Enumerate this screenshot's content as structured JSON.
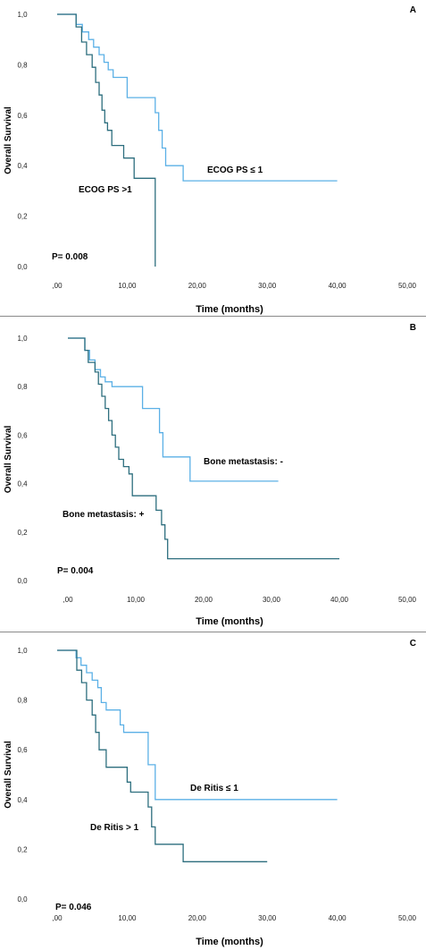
{
  "chart_data": [
    {
      "type": "line",
      "panel_label": "A",
      "ylabel": "Overall Survival",
      "xlabel": "Time (months)",
      "x_ticks": [
        ",00",
        "10,00",
        "20,00",
        "30,00",
        "40,00",
        "50,00"
      ],
      "y_ticks": [
        "0,0",
        "0,2",
        "0,4",
        "0,6",
        "0,8",
        "1,0"
      ],
      "xlim": [
        0,
        50
      ],
      "ylim": [
        0,
        1
      ],
      "p_value": "P= 0.008",
      "series": [
        {
          "name": "ECOG PS ≤ 1",
          "color": "#5bb0e6",
          "steps": [
            [
              0,
              1.0
            ],
            [
              2,
              1.0
            ],
            [
              2.7,
              0.96
            ],
            [
              3.6,
              0.93
            ],
            [
              4.5,
              0.9
            ],
            [
              5.2,
              0.87
            ],
            [
              6,
              0.84
            ],
            [
              6.7,
              0.81
            ],
            [
              7.3,
              0.78
            ],
            [
              8,
              0.75
            ],
            [
              10,
              0.75
            ],
            [
              10,
              0.67
            ],
            [
              14,
              0.67
            ],
            [
              14,
              0.61
            ],
            [
              14.5,
              0.54
            ],
            [
              15,
              0.47
            ],
            [
              15.5,
              0.4
            ],
            [
              18,
              0.4
            ],
            [
              18,
              0.34
            ],
            [
              40,
              0.34
            ]
          ],
          "label": "ECOG PS ≤ 1"
        },
        {
          "name": "ECOG PS >1",
          "color": "#2d6e7e",
          "steps": [
            [
              0,
              1.0
            ],
            [
              2,
              1.0
            ],
            [
              2.7,
              0.95
            ],
            [
              3.5,
              0.89
            ],
            [
              4.2,
              0.84
            ],
            [
              5,
              0.79
            ],
            [
              5.5,
              0.73
            ],
            [
              6,
              0.68
            ],
            [
              6.4,
              0.62
            ],
            [
              6.8,
              0.57
            ],
            [
              7.2,
              0.54
            ],
            [
              7.8,
              0.48
            ],
            [
              9.5,
              0.48
            ],
            [
              9.5,
              0.43
            ],
            [
              11,
              0.43
            ],
            [
              11,
              0.35
            ],
            [
              14,
              0.35
            ],
            [
              14,
              0.0
            ]
          ],
          "label": "ECOG PS >1"
        }
      ]
    },
    {
      "type": "line",
      "panel_label": "B",
      "ylabel": "Overall Survival",
      "xlabel": "Time (months)",
      "x_ticks": [
        ",00",
        "10,00",
        "20,00",
        "30,00",
        "40,00",
        "50,00"
      ],
      "y_ticks": [
        "0,0",
        "0,2",
        "0,4",
        "0,6",
        "0,8",
        "1,0"
      ],
      "xlim": [
        0,
        50
      ],
      "ylim": [
        0,
        1
      ],
      "p_value": "P= 0.004",
      "series": [
        {
          "name": "Bone metastasis: -",
          "color": "#5bb0e6",
          "steps": [
            [
              0,
              1.0
            ],
            [
              2,
              1.0
            ],
            [
              2.5,
              0.95
            ],
            [
              3.2,
              0.91
            ],
            [
              4,
              0.87
            ],
            [
              4.8,
              0.84
            ],
            [
              5.5,
              0.82
            ],
            [
              6.5,
              0.8
            ],
            [
              11,
              0.8
            ],
            [
              11,
              0.71
            ],
            [
              13.5,
              0.71
            ],
            [
              13.5,
              0.61
            ],
            [
              14,
              0.51
            ],
            [
              18,
              0.51
            ],
            [
              18,
              0.41
            ],
            [
              31,
              0.41
            ]
          ],
          "label": "Bone metastasis: -"
        },
        {
          "name": "Bone metastasis: +",
          "color": "#2d6e7e",
          "steps": [
            [
              0,
              1.0
            ],
            [
              2,
              1.0
            ],
            [
              2.5,
              0.95
            ],
            [
              3,
              0.9
            ],
            [
              4,
              0.86
            ],
            [
              4.5,
              0.81
            ],
            [
              5,
              0.76
            ],
            [
              5.5,
              0.71
            ],
            [
              6,
              0.66
            ],
            [
              6.5,
              0.6
            ],
            [
              7,
              0.55
            ],
            [
              7.5,
              0.5
            ],
            [
              8.2,
              0.47
            ],
            [
              9,
              0.44
            ],
            [
              9.5,
              0.35
            ],
            [
              13,
              0.35
            ],
            [
              13,
              0.29
            ],
            [
              13.8,
              0.23
            ],
            [
              14.3,
              0.17
            ],
            [
              14.7,
              0.09
            ],
            [
              40,
              0.09
            ]
          ],
          "label": "Bone metastasis: +"
        }
      ]
    },
    {
      "type": "line",
      "panel_label": "C",
      "ylabel": "Overall Survival",
      "xlabel": "Time (months)",
      "x_ticks": [
        ",00",
        "10,00",
        "20,00",
        "30,00",
        "40,00",
        "50,00"
      ],
      "y_ticks": [
        "0,0",
        "0,2",
        "0,4",
        "0,6",
        "0,8",
        "1,0"
      ],
      "xlim": [
        0,
        50
      ],
      "ylim": [
        0,
        1
      ],
      "p_value": "P= 0.046",
      "series": [
        {
          "name": "De Ritis ≤ 1",
          "color": "#5bb0e6",
          "steps": [
            [
              0,
              1.0
            ],
            [
              2,
              1.0
            ],
            [
              2.7,
              0.97
            ],
            [
              3.4,
              0.94
            ],
            [
              4.2,
              0.91
            ],
            [
              5,
              0.88
            ],
            [
              5.8,
              0.85
            ],
            [
              6.3,
              0.79
            ],
            [
              7,
              0.76
            ],
            [
              9,
              0.76
            ],
            [
              9,
              0.7
            ],
            [
              9.5,
              0.67
            ],
            [
              13,
              0.67
            ],
            [
              13,
              0.54
            ],
            [
              14,
              0.54
            ],
            [
              14,
              0.4
            ],
            [
              40,
              0.4
            ]
          ],
          "label": "De Ritis ≤ 1"
        },
        {
          "name": "De Ritis > 1",
          "color": "#2d6e7e",
          "steps": [
            [
              0,
              1.0
            ],
            [
              2,
              1.0
            ],
            [
              2.8,
              0.92
            ],
            [
              3.5,
              0.87
            ],
            [
              4.2,
              0.8
            ],
            [
              5,
              0.74
            ],
            [
              5.5,
              0.67
            ],
            [
              6,
              0.6
            ],
            [
              7,
              0.6
            ],
            [
              7,
              0.53
            ],
            [
              9,
              0.53
            ],
            [
              10,
              0.47
            ],
            [
              10.5,
              0.43
            ],
            [
              13,
              0.43
            ],
            [
              13,
              0.37
            ],
            [
              13.5,
              0.29
            ],
            [
              14,
              0.22
            ],
            [
              18,
              0.22
            ],
            [
              18,
              0.15
            ],
            [
              30,
              0.15
            ]
          ],
          "label": "De Ritis > 1"
        }
      ]
    }
  ]
}
